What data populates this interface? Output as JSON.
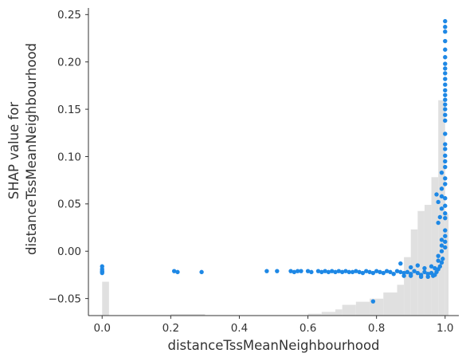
{
  "chart_data": {
    "type": "scatter",
    "title": "",
    "xlabel": "distanceTssMeanNeighbourhood",
    "ylabel_lines": [
      "SHAP value for",
      "distanceTssMeanNeighbourhood"
    ],
    "xlim": [
      -0.04,
      1.04
    ],
    "ylim": [
      -0.068,
      0.257
    ],
    "x_ticks": [
      0.0,
      0.2,
      0.4,
      0.6,
      0.8,
      1.0
    ],
    "x_tick_labels": [
      "0.0",
      "0.2",
      "0.4",
      "0.6",
      "0.8",
      "1.0"
    ],
    "y_ticks": [
      -0.05,
      0.0,
      0.05,
      0.1,
      0.15,
      0.2,
      0.25
    ],
    "y_tick_labels": [
      "−0.05",
      "0.00",
      "0.05",
      "0.10",
      "0.15",
      "0.20",
      "0.25"
    ],
    "grid": false,
    "legend": "none",
    "point_color": "#1e88e5",
    "histogram_color": "#e0e0e0",
    "histogram": {
      "note": "background histogram of feature values (relative height 0-1)",
      "bins": [
        {
          "x0": 0.0,
          "x1": 0.02,
          "h": 0.11
        },
        {
          "x0": 0.2,
          "x1": 0.3,
          "h": 0.005
        },
        {
          "x0": 0.6,
          "x1": 0.64,
          "h": 0.006
        },
        {
          "x0": 0.64,
          "x1": 0.68,
          "h": 0.012
        },
        {
          "x0": 0.68,
          "x1": 0.7,
          "h": 0.02
        },
        {
          "x0": 0.7,
          "x1": 0.74,
          "h": 0.035
        },
        {
          "x0": 0.74,
          "x1": 0.78,
          "h": 0.045
        },
        {
          "x0": 0.78,
          "x1": 0.82,
          "h": 0.055
        },
        {
          "x0": 0.82,
          "x1": 0.86,
          "h": 0.075
        },
        {
          "x0": 0.86,
          "x1": 0.88,
          "h": 0.1
        },
        {
          "x0": 0.88,
          "x1": 0.9,
          "h": 0.19
        },
        {
          "x0": 0.9,
          "x1": 0.92,
          "h": 0.28
        },
        {
          "x0": 0.92,
          "x1": 0.94,
          "h": 0.34
        },
        {
          "x0": 0.94,
          "x1": 0.96,
          "h": 0.36
        },
        {
          "x0": 0.96,
          "x1": 0.98,
          "h": 0.45
        },
        {
          "x0": 0.98,
          "x1": 1.0,
          "h": 0.7
        },
        {
          "x0": 1.0,
          "x1": 1.01,
          "h": 0.33
        }
      ]
    },
    "points": [
      {
        "x": 0.0,
        "y": -0.016
      },
      {
        "x": 0.0,
        "y": -0.019
      },
      {
        "x": 0.0,
        "y": -0.021
      },
      {
        "x": 0.0,
        "y": -0.022
      },
      {
        "x": 0.0,
        "y": -0.023
      },
      {
        "x": 0.21,
        "y": -0.021
      },
      {
        "x": 0.22,
        "y": -0.022
      },
      {
        "x": 0.29,
        "y": -0.022
      },
      {
        "x": 0.48,
        "y": -0.021
      },
      {
        "x": 0.51,
        "y": -0.021
      },
      {
        "x": 0.55,
        "y": -0.021
      },
      {
        "x": 0.56,
        "y": -0.022
      },
      {
        "x": 0.57,
        "y": -0.021
      },
      {
        "x": 0.58,
        "y": -0.021
      },
      {
        "x": 0.6,
        "y": -0.021
      },
      {
        "x": 0.61,
        "y": -0.022
      },
      {
        "x": 0.63,
        "y": -0.021
      },
      {
        "x": 0.64,
        "y": -0.022
      },
      {
        "x": 0.65,
        "y": -0.021
      },
      {
        "x": 0.66,
        "y": -0.022
      },
      {
        "x": 0.67,
        "y": -0.021
      },
      {
        "x": 0.68,
        "y": -0.022
      },
      {
        "x": 0.69,
        "y": -0.021
      },
      {
        "x": 0.7,
        "y": -0.022
      },
      {
        "x": 0.71,
        "y": -0.021
      },
      {
        "x": 0.72,
        "y": -0.022
      },
      {
        "x": 0.73,
        "y": -0.022
      },
      {
        "x": 0.74,
        "y": -0.021
      },
      {
        "x": 0.75,
        "y": -0.022
      },
      {
        "x": 0.76,
        "y": -0.023
      },
      {
        "x": 0.77,
        "y": -0.021
      },
      {
        "x": 0.78,
        "y": -0.022
      },
      {
        "x": 0.79,
        "y": -0.023
      },
      {
        "x": 0.8,
        "y": -0.021
      },
      {
        "x": 0.81,
        "y": -0.022
      },
      {
        "x": 0.82,
        "y": -0.023
      },
      {
        "x": 0.83,
        "y": -0.021
      },
      {
        "x": 0.84,
        "y": -0.022
      },
      {
        "x": 0.85,
        "y": -0.024
      },
      {
        "x": 0.86,
        "y": -0.021
      },
      {
        "x": 0.87,
        "y": -0.022
      },
      {
        "x": 0.88,
        "y": -0.023
      },
      {
        "x": 0.89,
        "y": -0.022
      },
      {
        "x": 0.9,
        "y": -0.024
      },
      {
        "x": 0.91,
        "y": -0.021
      },
      {
        "x": 0.92,
        "y": -0.023
      },
      {
        "x": 0.93,
        "y": -0.025
      },
      {
        "x": 0.94,
        "y": -0.022
      },
      {
        "x": 0.95,
        "y": -0.024
      },
      {
        "x": 0.96,
        "y": -0.023
      },
      {
        "x": 0.97,
        "y": -0.025
      },
      {
        "x": 0.975,
        "y": -0.022
      },
      {
        "x": 0.98,
        "y": -0.019
      },
      {
        "x": 0.985,
        "y": -0.016
      },
      {
        "x": 0.99,
        "y": -0.012
      },
      {
        "x": 0.993,
        "y": -0.008
      },
      {
        "x": 0.87,
        "y": -0.013
      },
      {
        "x": 0.9,
        "y": -0.017
      },
      {
        "x": 0.92,
        "y": -0.015
      },
      {
        "x": 0.94,
        "y": -0.018
      },
      {
        "x": 0.96,
        "y": -0.016
      },
      {
        "x": 0.97,
        "y": -0.018
      },
      {
        "x": 0.88,
        "y": -0.026
      },
      {
        "x": 0.9,
        "y": -0.026
      },
      {
        "x": 0.93,
        "y": -0.027
      },
      {
        "x": 0.95,
        "y": -0.027
      },
      {
        "x": 0.965,
        "y": -0.026
      },
      {
        "x": 0.79,
        "y": -0.053
      },
      {
        "x": 0.98,
        "y": -0.01
      },
      {
        "x": 0.98,
        "y": -0.005
      },
      {
        "x": 0.99,
        "y": 0.0
      },
      {
        "x": 0.99,
        "y": 0.006
      },
      {
        "x": 0.99,
        "y": 0.012
      },
      {
        "x": 1.0,
        "y": 0.004
      },
      {
        "x": 1.0,
        "y": 0.01
      },
      {
        "x": 1.0,
        "y": 0.016
      },
      {
        "x": 1.0,
        "y": 0.022
      },
      {
        "x": 0.98,
        "y": 0.03
      },
      {
        "x": 0.985,
        "y": 0.036
      },
      {
        "x": 0.99,
        "y": 0.045
      },
      {
        "x": 0.98,
        "y": 0.052
      },
      {
        "x": 0.99,
        "y": 0.058
      },
      {
        "x": 1.0,
        "y": 0.056
      },
      {
        "x": 1.0,
        "y": 0.048
      },
      {
        "x": 1.0,
        "y": 0.04
      },
      {
        "x": 1.0,
        "y": 0.035
      },
      {
        "x": 0.975,
        "y": 0.06
      },
      {
        "x": 0.99,
        "y": 0.066
      },
      {
        "x": 1.0,
        "y": 0.071
      },
      {
        "x": 1.0,
        "y": 0.077
      },
      {
        "x": 0.99,
        "y": 0.083
      },
      {
        "x": 1.0,
        "y": 0.089
      },
      {
        "x": 1.0,
        "y": 0.095
      },
      {
        "x": 1.0,
        "y": 0.101
      },
      {
        "x": 1.0,
        "y": 0.108
      },
      {
        "x": 1.0,
        "y": 0.113
      },
      {
        "x": 1.0,
        "y": 0.124
      },
      {
        "x": 1.0,
        "y": 0.138
      },
      {
        "x": 1.0,
        "y": 0.144
      },
      {
        "x": 1.0,
        "y": 0.15
      },
      {
        "x": 1.0,
        "y": 0.155
      },
      {
        "x": 1.0,
        "y": 0.16
      },
      {
        "x": 1.0,
        "y": 0.165
      },
      {
        "x": 1.0,
        "y": 0.17
      },
      {
        "x": 1.0,
        "y": 0.176
      },
      {
        "x": 1.0,
        "y": 0.182
      },
      {
        "x": 1.0,
        "y": 0.188
      },
      {
        "x": 1.0,
        "y": 0.193
      },
      {
        "x": 1.0,
        "y": 0.198
      },
      {
        "x": 1.0,
        "y": 0.205
      },
      {
        "x": 1.0,
        "y": 0.213
      },
      {
        "x": 1.0,
        "y": 0.222
      },
      {
        "x": 1.0,
        "y": 0.232
      },
      {
        "x": 1.0,
        "y": 0.237
      },
      {
        "x": 1.0,
        "y": 0.243
      }
    ]
  }
}
